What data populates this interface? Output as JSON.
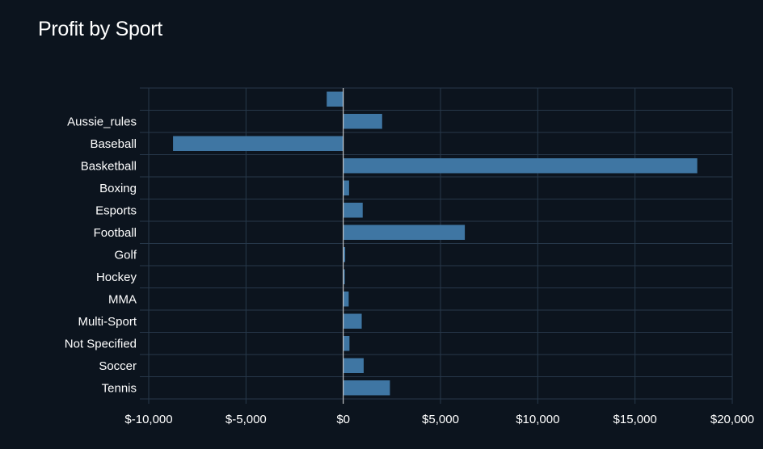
{
  "title": "Profit by Sport",
  "chart_data": {
    "type": "bar",
    "orientation": "horizontal",
    "title": "Profit by Sport",
    "xlabel": "",
    "ylabel": "",
    "categories": [
      "",
      "Aussie_rules",
      "Baseball",
      "Basketball",
      "Boxing",
      "Esports",
      "Football",
      "Golf",
      "Hockey",
      "MMA",
      "Multi-Sport",
      "Not Specified",
      "Soccer",
      "Tennis"
    ],
    "values": [
      -850,
      2000,
      -8750,
      18200,
      300,
      1000,
      6250,
      100,
      80,
      280,
      950,
      320,
      1050,
      2400
    ],
    "xlim": [
      -10000,
      20000
    ],
    "xticks": [
      -10000,
      -5000,
      0,
      5000,
      10000,
      15000,
      20000
    ],
    "xtick_labels": [
      "$-10,000",
      "$-5,000",
      "$0",
      "$5,000",
      "$10,000",
      "$15,000",
      "$20,000"
    ],
    "bar_color": "#3f76a3",
    "grid": true,
    "grid_color": "#27384a",
    "zero_line_color": "#e6e6e6",
    "background": "#0c141e"
  }
}
